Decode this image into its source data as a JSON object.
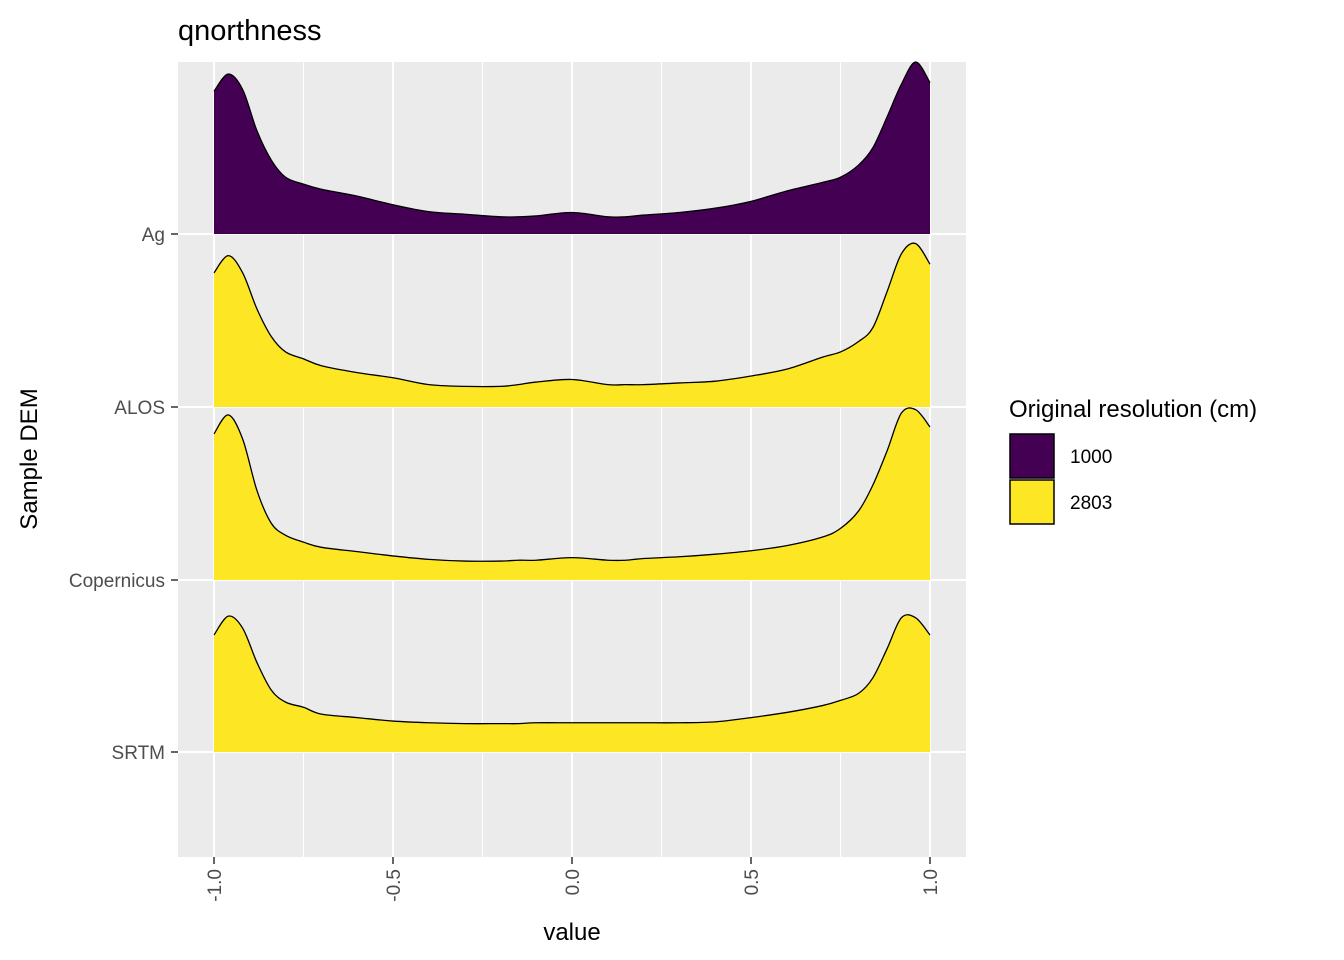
{
  "chart_data": {
    "type": "ridgeline",
    "title": "qnorthness",
    "xlabel": "value",
    "ylabel": "Sample DEM",
    "xlim": [
      -1.1,
      1.1
    ],
    "x_ticks": [
      -1.0,
      -0.5,
      0.0,
      0.5,
      1.0
    ],
    "x_tick_labels": [
      "-1.0",
      "-0.5",
      "0.0",
      "0.5",
      "1.0"
    ],
    "categories": [
      "Ag",
      "ALOS",
      "Copernicus",
      "SRTM"
    ],
    "legend": {
      "title": "Original resolution (cm)",
      "position": "right",
      "entries": [
        {
          "label": "1000",
          "color": "#440154"
        },
        {
          "label": "2803",
          "color": "#FDE725"
        }
      ]
    },
    "series": [
      {
        "name": "Ag",
        "resolution": "1000",
        "color": "#440154",
        "x": [
          -1.0,
          -0.96,
          -0.92,
          -0.88,
          -0.84,
          -0.8,
          -0.75,
          -0.7,
          -0.6,
          -0.5,
          -0.4,
          -0.3,
          -0.2,
          -0.15,
          -0.1,
          0.0,
          0.1,
          0.15,
          0.2,
          0.3,
          0.4,
          0.5,
          0.6,
          0.7,
          0.75,
          0.8,
          0.84,
          0.88,
          0.92,
          0.96,
          1.0
        ],
        "density": [
          0.83,
          0.93,
          0.84,
          0.6,
          0.43,
          0.33,
          0.29,
          0.26,
          0.22,
          0.17,
          0.13,
          0.115,
          0.1,
          0.1,
          0.105,
          0.125,
          0.1,
          0.1,
          0.11,
          0.125,
          0.15,
          0.19,
          0.25,
          0.3,
          0.33,
          0.4,
          0.5,
          0.68,
          0.87,
          1.0,
          0.88
        ]
      },
      {
        "name": "ALOS",
        "resolution": "2803",
        "color": "#FDE725",
        "x": [
          -1.0,
          -0.96,
          -0.92,
          -0.88,
          -0.84,
          -0.8,
          -0.75,
          -0.7,
          -0.6,
          -0.5,
          -0.4,
          -0.3,
          -0.2,
          -0.15,
          -0.1,
          0.0,
          0.1,
          0.15,
          0.2,
          0.3,
          0.4,
          0.5,
          0.6,
          0.7,
          0.75,
          0.8,
          0.84,
          0.88,
          0.92,
          0.96,
          1.0
        ],
        "density": [
          0.78,
          0.88,
          0.78,
          0.57,
          0.41,
          0.32,
          0.28,
          0.24,
          0.2,
          0.17,
          0.13,
          0.12,
          0.12,
          0.13,
          0.145,
          0.16,
          0.13,
          0.13,
          0.13,
          0.14,
          0.15,
          0.18,
          0.22,
          0.29,
          0.32,
          0.38,
          0.46,
          0.67,
          0.89,
          0.95,
          0.83
        ]
      },
      {
        "name": "Copernicus",
        "resolution": "2803",
        "color": "#FDE725",
        "x": [
          -1.0,
          -0.96,
          -0.92,
          -0.88,
          -0.84,
          -0.8,
          -0.75,
          -0.7,
          -0.6,
          -0.5,
          -0.4,
          -0.3,
          -0.2,
          -0.15,
          -0.1,
          0.0,
          0.1,
          0.15,
          0.2,
          0.3,
          0.4,
          0.5,
          0.6,
          0.7,
          0.75,
          0.8,
          0.84,
          0.88,
          0.92,
          0.96,
          1.0
        ],
        "density": [
          0.85,
          0.96,
          0.82,
          0.52,
          0.33,
          0.26,
          0.22,
          0.19,
          0.165,
          0.14,
          0.12,
          0.11,
          0.11,
          0.115,
          0.115,
          0.13,
          0.115,
          0.115,
          0.125,
          0.135,
          0.15,
          0.17,
          0.2,
          0.25,
          0.3,
          0.4,
          0.55,
          0.75,
          0.97,
          0.99,
          0.89
        ]
      },
      {
        "name": "SRTM",
        "resolution": "2803",
        "color": "#FDE725",
        "x": [
          -1.0,
          -0.96,
          -0.92,
          -0.88,
          -0.84,
          -0.8,
          -0.75,
          -0.7,
          -0.6,
          -0.5,
          -0.4,
          -0.3,
          -0.2,
          -0.15,
          -0.1,
          0.0,
          0.1,
          0.15,
          0.2,
          0.3,
          0.4,
          0.5,
          0.6,
          0.7,
          0.75,
          0.8,
          0.84,
          0.88,
          0.92,
          0.96,
          1.0
        ],
        "density": [
          0.68,
          0.79,
          0.72,
          0.52,
          0.36,
          0.29,
          0.26,
          0.22,
          0.2,
          0.18,
          0.17,
          0.165,
          0.165,
          0.165,
          0.17,
          0.17,
          0.17,
          0.17,
          0.17,
          0.17,
          0.175,
          0.2,
          0.23,
          0.27,
          0.3,
          0.34,
          0.43,
          0.6,
          0.78,
          0.78,
          0.68
        ]
      }
    ]
  }
}
